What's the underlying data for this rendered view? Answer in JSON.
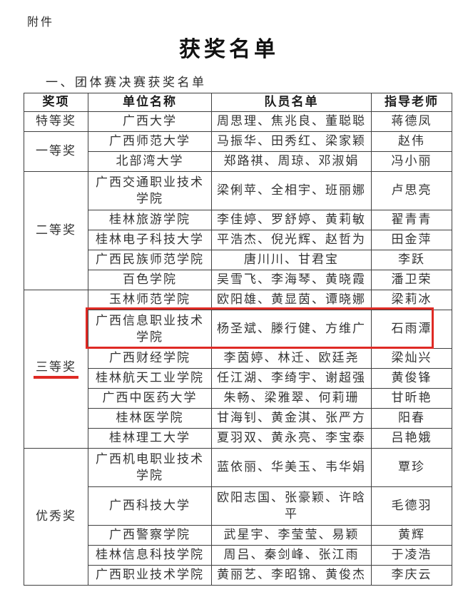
{
  "page": {
    "attachment_label": "附件",
    "title": "获奖名单",
    "section_heading": "一、团体赛决赛获奖名单"
  },
  "table": {
    "columns": [
      "奖项",
      "单位名称",
      "队员名单",
      "指导老师"
    ],
    "groups": [
      {
        "award": "特等奖",
        "rows": [
          {
            "org": "广西大学",
            "members": "周思理、焦兆良、董聪聪",
            "advisor": "蒋德凤"
          }
        ]
      },
      {
        "award": "一等奖",
        "rows": [
          {
            "org": "广西师范大学",
            "members": "马振华、田秀红、梁家颖",
            "advisor": "赵伟"
          },
          {
            "org": "北部湾大学",
            "members": "郑路祺、周琼、邓淑娟",
            "advisor": "冯小丽"
          }
        ]
      },
      {
        "award": "二等奖",
        "rows": [
          {
            "org": "广西交通职业技术学院",
            "members": "梁俐苹、全相宇、班丽娜",
            "advisor": "卢思亮"
          },
          {
            "org": "桂林旅游学院",
            "members": "李佳婷、罗舒婷、黄莉敏",
            "advisor": "翟青青"
          },
          {
            "org": "桂林电子科技大学",
            "members": "平浩杰、倪光辉、赵哲为",
            "advisor": "田金萍"
          },
          {
            "org": "广西民族师范学院",
            "members": "唐川川、甘君宝",
            "advisor": "李跃"
          },
          {
            "org": "百色学院",
            "members": "吴雪飞、李海琴、黄晓霞",
            "advisor": "潘卫荣"
          }
        ]
      },
      {
        "award": "三等奖",
        "underlined": true,
        "rows": [
          {
            "org": "玉林师范学院",
            "members": "欧阳雄、黄显茵、谭晓娜",
            "advisor": "梁莉冰"
          },
          {
            "org": "广西信息职业技术学院",
            "members": "杨圣斌、滕行健、方维广",
            "advisor": "石雨潭",
            "highlighted": true
          },
          {
            "org": "广西财经学院",
            "members": "李茵婷、林迁、欧廷尧",
            "advisor": "梁灿兴"
          },
          {
            "org": "桂林航天工业学院",
            "members": "任江湖、李绮宇、谢超强",
            "advisor": "黄俊锋"
          },
          {
            "org": "广西中医药大学",
            "members": "朱畅、梁雅翠、何莉珊",
            "advisor": "甘昕艳"
          },
          {
            "org": "桂林医学院",
            "members": "甘海钊、黄金淇、张严方",
            "advisor": "阳春"
          },
          {
            "org": "桂林理工大学",
            "members": "夏羽双、黄永亮、李宝泰",
            "advisor": "吕艳娥"
          }
        ]
      },
      {
        "award": "优秀奖",
        "rows": [
          {
            "org": "广西机电职业技术学院",
            "members": "蓝依丽、华美玉、韦华娟",
            "advisor": "覃珍"
          },
          {
            "org": "广西科技大学",
            "members": "欧阳志国、张豪颖、许晗平",
            "advisor": "毛德羽"
          },
          {
            "org": "广西警察学院",
            "members": "武星宇、李莹莹、易颖",
            "advisor": "黄辉"
          },
          {
            "org": "桂林信息科技学院",
            "members": "周吕、秦剑峰、张江雨",
            "advisor": "于凌浩"
          },
          {
            "org": "广西职业技术学院",
            "members": "黄丽艺、李昭锦、黄俊杰",
            "advisor": "李庆云"
          }
        ]
      }
    ]
  },
  "annotations": {
    "highlighted_org": "广西信息职业技术学院",
    "highlighted_advisor": "石雨潭",
    "underlined_award": "三等奖",
    "mark_color": "#df2a24"
  }
}
